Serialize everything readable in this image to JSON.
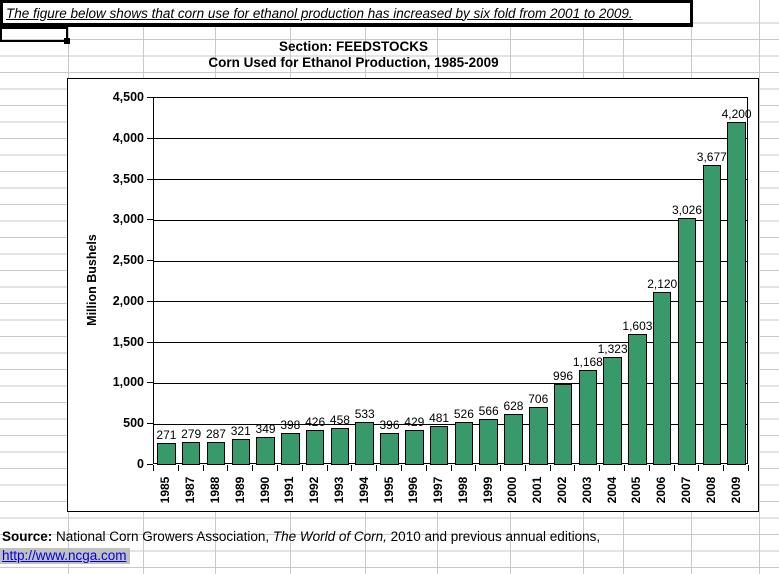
{
  "banner": {
    "text": "The figure below shows that corn use for ethanol production has increased by six fold from 2001 to 2009."
  },
  "titles": {
    "line1": "Section: FEEDSTOCKS",
    "line2": "Corn Used for Ethanol Production, 1985-2009"
  },
  "chart_data": {
    "type": "bar",
    "title": "Corn Used for Ethanol Production, 1985-2009",
    "categories": [
      "1985",
      "1987",
      "1988",
      "1989",
      "1990",
      "1991",
      "1992",
      "1993",
      "1994",
      "1995",
      "1996",
      "1997",
      "1998",
      "1999",
      "2000",
      "2001",
      "2002",
      "2003",
      "2004",
      "2005",
      "2006",
      "2007",
      "2008",
      "2009"
    ],
    "values": [
      271,
      279,
      287,
      321,
      349,
      398,
      426,
      458,
      533,
      396,
      429,
      481,
      526,
      566,
      628,
      706,
      996,
      1168,
      1323,
      1603,
      2120,
      3026,
      3677,
      4200
    ],
    "xlabel": "",
    "ylabel": "Million Bushels",
    "ylim": [
      0,
      4500
    ],
    "ytick_step": 500,
    "grid": "horizontal",
    "legend": "none",
    "data_labels": true,
    "bar_color": "#38996b",
    "bar_border_color": "#000000"
  },
  "source": {
    "prefix": "Source:",
    "text1": " National Corn Growers Association, ",
    "italic_title": "The World of Corn,",
    "text2": " 2010 and previous annual editions,",
    "link": "http://www.ncga.com"
  },
  "colors": {
    "excel_gridline": "#c9c9c9",
    "link_blue": "#0000dd",
    "link_highlight": "#c0c0c0",
    "chart_gridline": "#000000"
  }
}
